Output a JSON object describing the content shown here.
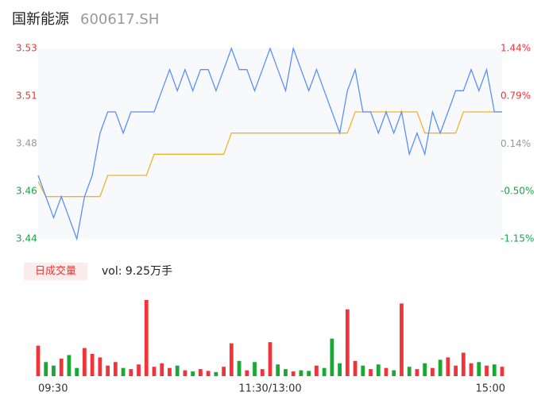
{
  "chart_data": {
    "type": "intraday",
    "title": "国新能源",
    "subtitle": "600617.SH",
    "volume_label": "日成交量",
    "volume_text": "vol: 9.25万手",
    "xlim": [
      0,
      240
    ],
    "xticks": [
      {
        "value": 0,
        "label": "09:30"
      },
      {
        "value": 120,
        "label": "11:30/13:00"
      },
      {
        "value": 240,
        "label": "15:00"
      }
    ],
    "ylim": [
      3.44,
      3.53
    ],
    "yticks": [
      {
        "value": 3.44,
        "label": "3.44"
      },
      {
        "value": 3.4625,
        "label": "3.46"
      },
      {
        "value": 3.485,
        "label": "3.48"
      },
      {
        "value": 3.5075,
        "label": "3.51"
      },
      {
        "value": 3.53,
        "label": "3.53"
      }
    ],
    "y2lim": [
      -1.15,
      1.44
    ],
    "y2ticks": [
      {
        "value": -1.15,
        "label": "-1.15%"
      },
      {
        "value": -0.5,
        "label": "-0.50%"
      },
      {
        "value": 0.14,
        "label": "0.14%"
      },
      {
        "value": 0.79,
        "label": "0.79%"
      },
      {
        "value": 1.44,
        "label": "1.44%"
      }
    ],
    "tick_colors": [
      "#1aa34a",
      "#1aa34a",
      "#999999",
      "#e53935",
      "#e53935"
    ],
    "up_color": "#f0353a",
    "down_color": "#18a834",
    "x": [
      0,
      4,
      8,
      12,
      16,
      20,
      24,
      28,
      32,
      36,
      40,
      44,
      48,
      52,
      56,
      60,
      64,
      68,
      72,
      76,
      80,
      84,
      88,
      92,
      96,
      100,
      104,
      108,
      112,
      116,
      120,
      124,
      128,
      132,
      136,
      140,
      144,
      148,
      152,
      156,
      160,
      164,
      168,
      172,
      176,
      180,
      184,
      188,
      192,
      196,
      200,
      204,
      208,
      212,
      216,
      220,
      224,
      228,
      232,
      236,
      240
    ],
    "series": [
      {
        "name": "price",
        "color": "#5b8ff9",
        "values": [
          3.47,
          3.46,
          3.45,
          3.46,
          3.45,
          3.44,
          3.46,
          3.47,
          3.49,
          3.5,
          3.5,
          3.49,
          3.5,
          3.5,
          3.5,
          3.5,
          3.51,
          3.52,
          3.51,
          3.52,
          3.51,
          3.52,
          3.52,
          3.51,
          3.52,
          3.53,
          3.52,
          3.52,
          3.51,
          3.52,
          3.53,
          3.52,
          3.51,
          3.53,
          3.52,
          3.51,
          3.52,
          3.51,
          3.5,
          3.49,
          3.51,
          3.52,
          3.5,
          3.5,
          3.49,
          3.5,
          3.49,
          3.5,
          3.48,
          3.49,
          3.48,
          3.5,
          3.49,
          3.5,
          3.51,
          3.51,
          3.52,
          3.51,
          3.52,
          3.5,
          3.5
        ]
      },
      {
        "name": "avg",
        "color": "#f0b429",
        "values": [
          3.467,
          3.46,
          3.46,
          3.46,
          3.46,
          3.46,
          3.46,
          3.46,
          3.46,
          3.47,
          3.47,
          3.47,
          3.47,
          3.47,
          3.47,
          3.48,
          3.48,
          3.48,
          3.48,
          3.48,
          3.48,
          3.48,
          3.48,
          3.48,
          3.48,
          3.49,
          3.49,
          3.49,
          3.49,
          3.49,
          3.49,
          3.49,
          3.49,
          3.49,
          3.49,
          3.49,
          3.49,
          3.49,
          3.49,
          3.49,
          3.49,
          3.5,
          3.5,
          3.5,
          3.5,
          3.5,
          3.5,
          3.5,
          3.5,
          3.5,
          3.49,
          3.49,
          3.49,
          3.49,
          3.49,
          3.5,
          3.5,
          3.5,
          3.5,
          3.5,
          3.5
        ]
      },
      {
        "name": "volume",
        "values": [
          2600,
          1200,
          900,
          1500,
          1800,
          700,
          2400,
          1900,
          1600,
          900,
          1200,
          700,
          600,
          1000,
          6500,
          800,
          1100,
          700,
          900,
          500,
          400,
          600,
          450,
          350,
          800,
          2800,
          1300,
          500,
          1200,
          600,
          2900,
          1000,
          600,
          400,
          500,
          450,
          900,
          700,
          3200,
          1100,
          5700,
          1300,
          900,
          600,
          1000,
          700,
          500,
          6200,
          800,
          600,
          1100,
          700,
          1400,
          1600,
          900,
          2000,
          1100,
          1200,
          900,
          1000,
          800
        ]
      }
    ]
  }
}
